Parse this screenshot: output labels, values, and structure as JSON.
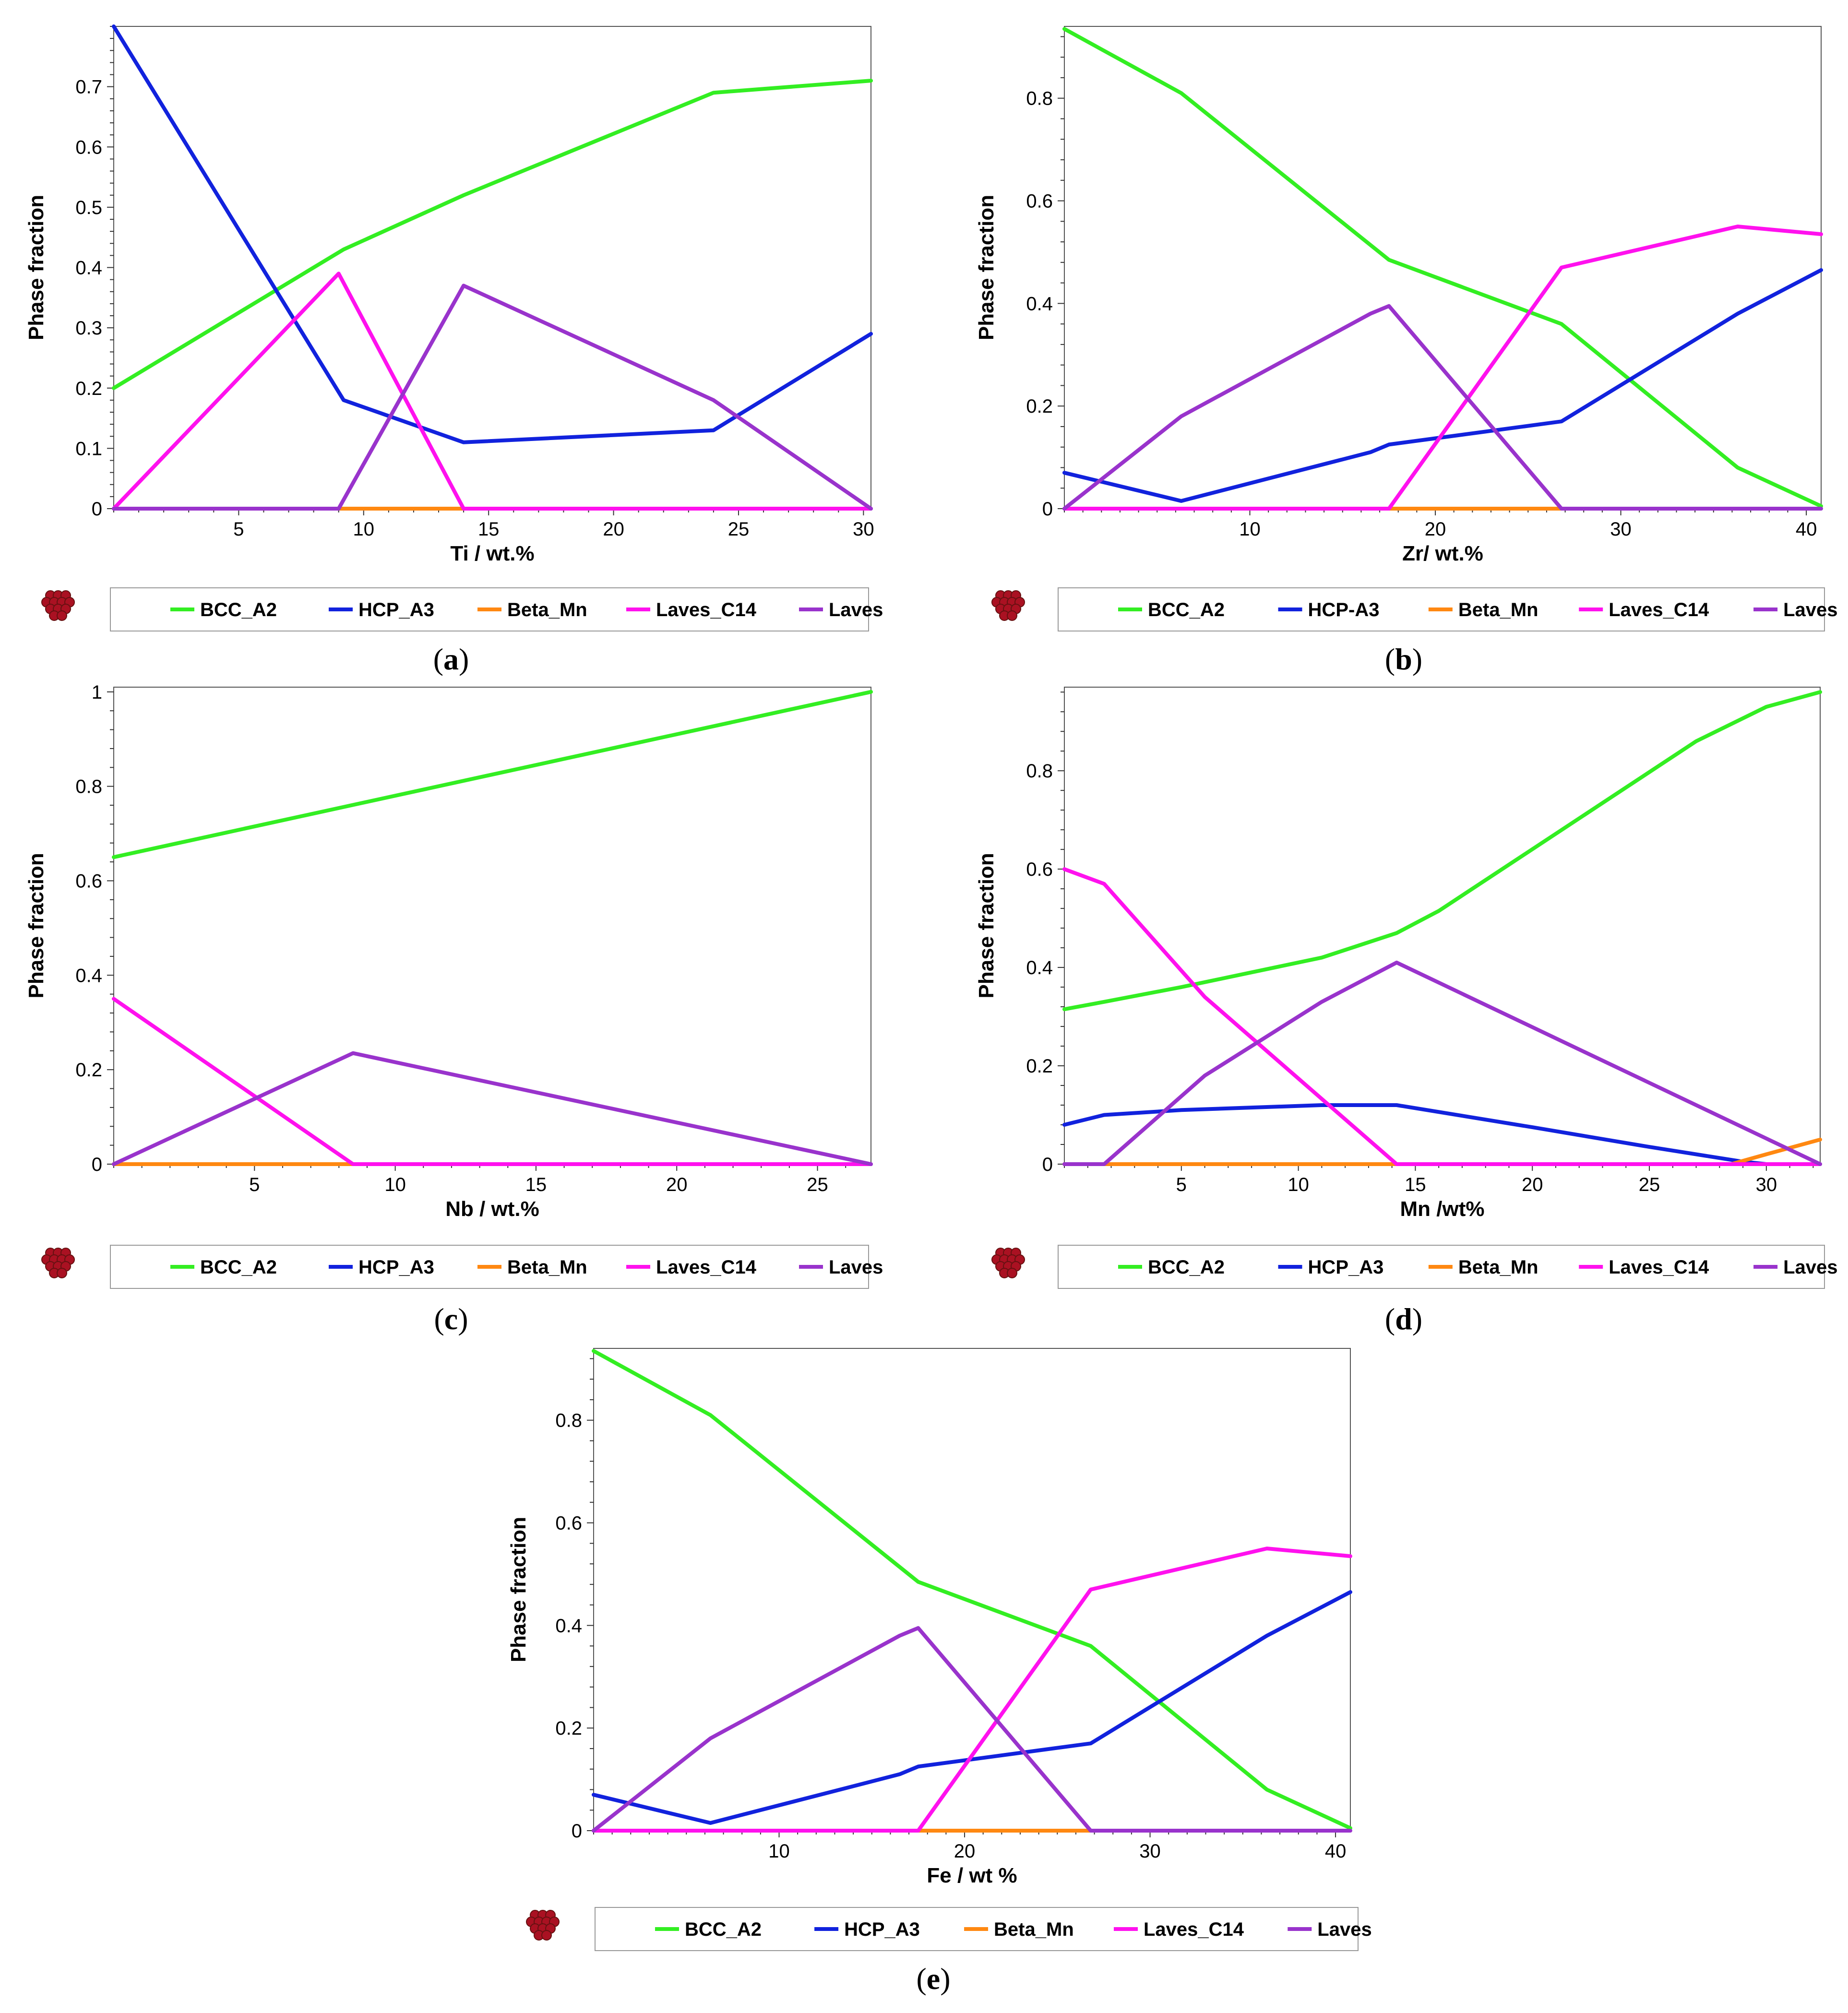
{
  "figure": {
    "colors": {
      "BCC_A2": "#33ee22",
      "HCP": "#1122dd",
      "Beta_Mn": "#ff8811",
      "Laves_C14": "#ff11ee",
      "Laves": "#9933cc"
    },
    "logo_icon": "atom-cluster-icon"
  },
  "chart_data": [
    {
      "id": "a",
      "type": "line",
      "caption": "a",
      "xlabel": "Ti / wt.%",
      "ylabel": "Phase fraction",
      "xlim": [
        0,
        30.3
      ],
      "ylim": [
        0,
        0.8
      ],
      "xticks": [
        5,
        10,
        15,
        20,
        25,
        30
      ],
      "xtick_labels": [
        "5",
        "10",
        "15",
        "20",
        "25",
        "30"
      ],
      "yticks": [
        0,
        0.1,
        0.2,
        0.3,
        0.4,
        0.5,
        0.6,
        0.7
      ],
      "ytick_labels": [
        "0",
        "0.1",
        "0.2",
        "0.3",
        "0.4",
        "0.5",
        "0.6",
        "0.7"
      ],
      "legend": [
        "BCC_A2",
        "HCP_A3",
        "Beta_Mn",
        "Laves_C14",
        "Laves"
      ],
      "series": [
        {
          "name": "BCC_A2",
          "color_key": "BCC_A2",
          "points": [
            [
              0,
              0.2
            ],
            [
              9.2,
              0.43
            ],
            [
              14,
              0.52
            ],
            [
              24,
              0.69
            ],
            [
              30.3,
              0.71
            ]
          ]
        },
        {
          "name": "HCP_A3",
          "color_key": "HCP",
          "points": [
            [
              0,
              0.8
            ],
            [
              9.2,
              0.18
            ],
            [
              14,
              0.11
            ],
            [
              24,
              0.13
            ],
            [
              30.3,
              0.29
            ]
          ]
        },
        {
          "name": "Beta_Mn",
          "color_key": "Beta_Mn",
          "points": [
            [
              9,
              0
            ],
            [
              14,
              0
            ]
          ]
        },
        {
          "name": "Laves_C14",
          "color_key": "Laves_C14",
          "points": [
            [
              0,
              0
            ],
            [
              9,
              0.39
            ],
            [
              14,
              0
            ],
            [
              30.3,
              0
            ]
          ]
        },
        {
          "name": "Laves",
          "color_key": "Laves",
          "points": [
            [
              0,
              0
            ],
            [
              9,
              0
            ],
            [
              14,
              0.37
            ],
            [
              24,
              0.18
            ],
            [
              30.3,
              0
            ]
          ]
        }
      ]
    },
    {
      "id": "b",
      "type": "line",
      "caption": "b",
      "xlabel": "Zr/ wt.%",
      "ylabel": "Phase fraction",
      "xlim": [
        0,
        40.8
      ],
      "ylim": [
        0,
        0.94
      ],
      "xticks": [
        10,
        20,
        30,
        40
      ],
      "xtick_labels": [
        "10",
        "20",
        "30",
        "40"
      ],
      "yticks": [
        0,
        0.2,
        0.4,
        0.6,
        0.8
      ],
      "ytick_labels": [
        "0",
        "0.2",
        "0.4",
        "0.6",
        "0.8"
      ],
      "legend": [
        "BCC_A2",
        "HCP-A3",
        "Beta_Mn",
        "Laves_C14",
        "Laves"
      ],
      "series": [
        {
          "name": "BCC_A2",
          "color_key": "BCC_A2",
          "points": [
            [
              0,
              0.935
            ],
            [
              6.3,
              0.81
            ],
            [
              17.5,
              0.485
            ],
            [
              26.8,
              0.36
            ],
            [
              36.3,
              0.08
            ],
            [
              40.8,
              0.005
            ]
          ]
        },
        {
          "name": "HCP-A3",
          "color_key": "HCP",
          "points": [
            [
              0,
              0.07
            ],
            [
              6.3,
              0.015
            ],
            [
              16.5,
              0.11
            ],
            [
              17.5,
              0.125
            ],
            [
              26.8,
              0.17
            ],
            [
              36.3,
              0.38
            ],
            [
              40.8,
              0.465
            ]
          ]
        },
        {
          "name": "Beta_Mn",
          "color_key": "Beta_Mn",
          "points": [
            [
              17.5,
              0
            ],
            [
              26.8,
              0
            ]
          ]
        },
        {
          "name": "Laves_C14",
          "color_key": "Laves_C14",
          "points": [
            [
              0,
              0
            ],
            [
              17.5,
              0
            ],
            [
              26.8,
              0.47
            ],
            [
              36.3,
              0.55
            ],
            [
              40.8,
              0.535
            ]
          ]
        },
        {
          "name": "Laves",
          "color_key": "Laves",
          "points": [
            [
              0,
              0
            ],
            [
              6.3,
              0.18
            ],
            [
              16.5,
              0.38
            ],
            [
              17.5,
              0.395
            ],
            [
              26.8,
              0
            ],
            [
              40.8,
              0
            ]
          ]
        }
      ]
    },
    {
      "id": "c",
      "type": "line",
      "caption": "c",
      "xlabel": "Nb / wt.%",
      "ylabel": "Phase fraction",
      "xlim": [
        0,
        26.9
      ],
      "ylim": [
        0,
        1.01
      ],
      "xticks": [
        5,
        10,
        15,
        20,
        25
      ],
      "xtick_labels": [
        "5",
        "10",
        "15",
        "20",
        "25"
      ],
      "yticks": [
        0,
        0.2,
        0.4,
        0.6,
        0.8,
        1
      ],
      "ytick_labels": [
        "0",
        "0.2",
        "0.4",
        "0.6",
        "0.8",
        "1"
      ],
      "legend": [
        "BCC_A2",
        "HCP_A3",
        "Beta_Mn",
        "Laves_C14",
        "Laves"
      ],
      "series": [
        {
          "name": "BCC_A2",
          "color_key": "BCC_A2",
          "points": [
            [
              0,
              0.65
            ],
            [
              26.9,
              1.0
            ]
          ]
        },
        {
          "name": "HCP_A3",
          "color_key": "HCP",
          "points": []
        },
        {
          "name": "Beta_Mn",
          "color_key": "Beta_Mn",
          "points": [
            [
              0,
              0
            ],
            [
              8.5,
              0
            ]
          ]
        },
        {
          "name": "Laves_C14",
          "color_key": "Laves_C14",
          "points": [
            [
              0,
              0.35
            ],
            [
              8.5,
              0
            ],
            [
              26.9,
              0
            ]
          ]
        },
        {
          "name": "Laves",
          "color_key": "Laves",
          "points": [
            [
              0,
              0
            ],
            [
              8.5,
              0.235
            ],
            [
              26.9,
              0
            ]
          ]
        }
      ]
    },
    {
      "id": "d",
      "type": "line",
      "caption": "d",
      "xlabel": "Mn /wt%",
      "ylabel": "Phase fraction",
      "xlim": [
        0,
        32.3
      ],
      "ylim": [
        0,
        0.97
      ],
      "xticks": [
        5,
        10,
        15,
        20,
        25,
        30
      ],
      "xtick_labels": [
        "5",
        "10",
        "15",
        "20",
        "25",
        "30"
      ],
      "yticks": [
        0,
        0.2,
        0.4,
        0.6,
        0.8
      ],
      "ytick_labels": [
        "0",
        "0.2",
        "0.4",
        "0.6",
        "0.8"
      ],
      "legend": [
        "BCC_A2",
        "HCP_A3",
        "Beta_Mn",
        "Laves_C14",
        "Laves"
      ],
      "series": [
        {
          "name": "BCC_A2",
          "color_key": "BCC_A2",
          "points": [
            [
              0,
              0.315
            ],
            [
              1.7,
              0.33
            ],
            [
              5,
              0.36
            ],
            [
              11,
              0.42
            ],
            [
              14.2,
              0.47
            ],
            [
              16,
              0.515
            ],
            [
              27,
              0.86
            ],
            [
              30,
              0.93
            ],
            [
              32.3,
              0.96
            ]
          ]
        },
        {
          "name": "HCP_A3",
          "color_key": "HCP",
          "points": [
            [
              0,
              0.08
            ],
            [
              1.7,
              0.1
            ],
            [
              5,
              0.11
            ],
            [
              11,
              0.12
            ],
            [
              14.2,
              0.12
            ],
            [
              20,
              0.075
            ],
            [
              25,
              0.035
            ],
            [
              29,
              0.005
            ],
            [
              30,
              0
            ]
          ]
        },
        {
          "name": "Beta_Mn",
          "color_key": "Beta_Mn",
          "points": [
            [
              0,
              0
            ],
            [
              28.5,
              0
            ],
            [
              30,
              0.02
            ],
            [
              32.3,
              0.05
            ]
          ]
        },
        {
          "name": "Laves_C14",
          "color_key": "Laves_C14",
          "points": [
            [
              0,
              0.6
            ],
            [
              1.7,
              0.57
            ],
            [
              6,
              0.34
            ],
            [
              14.2,
              0
            ],
            [
              32.3,
              0
            ]
          ]
        },
        {
          "name": "Laves",
          "color_key": "Laves",
          "points": [
            [
              0,
              0
            ],
            [
              1.7,
              0
            ],
            [
              6,
              0.18
            ],
            [
              11,
              0.33
            ],
            [
              14.2,
              0.41
            ],
            [
              32.3,
              0
            ]
          ]
        }
      ]
    },
    {
      "id": "e",
      "type": "line",
      "caption": "e",
      "xlabel": "Fe / wt %",
      "ylabel": "Phase fraction",
      "xlim": [
        0,
        40.8
      ],
      "ylim": [
        0,
        0.94
      ],
      "xticks": [
        10,
        20,
        30,
        40
      ],
      "xtick_labels": [
        "10",
        "20",
        "30",
        "40"
      ],
      "yticks": [
        0,
        0.2,
        0.4,
        0.6,
        0.8
      ],
      "ytick_labels": [
        "0",
        "0.2",
        "0.4",
        "0.6",
        "0.8"
      ],
      "legend": [
        "BCC_A2",
        "HCP_A3",
        "Beta_Mn",
        "Laves_C14",
        "Laves"
      ],
      "series": [
        {
          "name": "BCC_A2",
          "color_key": "BCC_A2",
          "points": [
            [
              0,
              0.935
            ],
            [
              6.3,
              0.81
            ],
            [
              17.5,
              0.485
            ],
            [
              26.8,
              0.36
            ],
            [
              36.3,
              0.08
            ],
            [
              40.8,
              0.005
            ]
          ]
        },
        {
          "name": "HCP_A3",
          "color_key": "HCP",
          "points": [
            [
              0,
              0.07
            ],
            [
              6.3,
              0.015
            ],
            [
              16.5,
              0.11
            ],
            [
              17.5,
              0.125
            ],
            [
              26.8,
              0.17
            ],
            [
              36.3,
              0.38
            ],
            [
              40.8,
              0.465
            ]
          ]
        },
        {
          "name": "Beta_Mn",
          "color_key": "Beta_Mn",
          "points": [
            [
              17.5,
              0
            ],
            [
              26.8,
              0
            ]
          ]
        },
        {
          "name": "Laves_C14",
          "color_key": "Laves_C14",
          "points": [
            [
              0,
              0
            ],
            [
              17.5,
              0
            ],
            [
              26.8,
              0.47
            ],
            [
              36.3,
              0.55
            ],
            [
              40.8,
              0.535
            ]
          ]
        },
        {
          "name": "Laves",
          "color_key": "Laves",
          "points": [
            [
              0,
              0
            ],
            [
              6.3,
              0.18
            ],
            [
              16.5,
              0.38
            ],
            [
              17.5,
              0.395
            ],
            [
              26.8,
              0
            ],
            [
              40.8,
              0
            ]
          ]
        }
      ]
    }
  ]
}
